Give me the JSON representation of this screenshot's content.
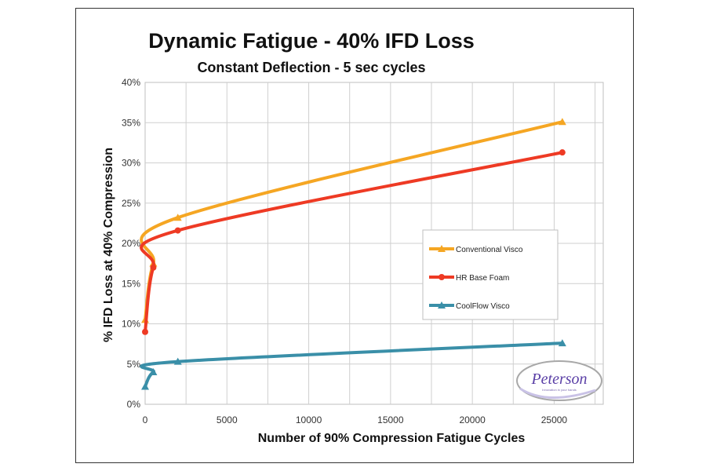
{
  "chart_data": {
    "type": "line",
    "title": "Dynamic Fatigue - 40% IFD Loss",
    "subtitle": "Constant Deflection - 5 sec cycles",
    "xlabel": "Number of 90% Compression Fatigue Cycles",
    "ylabel": "% IFD Loss at 40% Compression",
    "xlim": [
      0,
      28000
    ],
    "ylim": [
      0,
      40
    ],
    "x_ticks": [
      0,
      5000,
      10000,
      15000,
      20000,
      25000
    ],
    "x_tick_labels": [
      "0",
      "5000",
      "10000",
      "15000",
      "20000",
      "25000"
    ],
    "y_ticks": [
      0,
      5,
      10,
      15,
      20,
      25,
      30,
      35,
      40
    ],
    "y_tick_labels": [
      "0%",
      "5%",
      "10%",
      "15%",
      "20%",
      "25%",
      "30%",
      "35%",
      "40%"
    ],
    "grid": true,
    "legend_position": "right",
    "series": [
      {
        "name": "Conventional Visco",
        "color": "#F5A623",
        "marker": "triangle",
        "x": [
          0,
          500,
          2000,
          25500
        ],
        "y": [
          10.5,
          17.5,
          23.2,
          35.1
        ]
      },
      {
        "name": "HR Base Foam",
        "color": "#EE3A24",
        "marker": "circle",
        "x": [
          0,
          500,
          2000,
          25500
        ],
        "y": [
          9.0,
          17.0,
          21.6,
          31.3
        ]
      },
      {
        "name": "CoolFlow Visco",
        "color": "#3A8FA8",
        "marker": "triangle",
        "x": [
          0,
          500,
          2000,
          25500
        ],
        "y": [
          2.2,
          4.0,
          5.3,
          7.6
        ]
      }
    ],
    "logo": {
      "text": "Peterson",
      "tagline": "Innovation in your hands"
    }
  }
}
